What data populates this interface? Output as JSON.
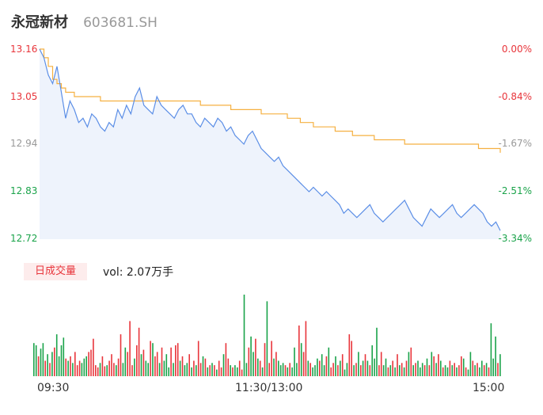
{
  "header": {
    "name": "永冠新材",
    "code": "603681.SH"
  },
  "colors": {
    "up": "#e8353b",
    "down": "#1aa34a",
    "neutral": "#999999",
    "price_line": "#5b8ee6",
    "avg_line": "#f5b041",
    "area": "#eef3fc"
  },
  "chart_data": [
    {
      "type": "line",
      "title": "",
      "x_ticks": [
        "09:30",
        "11:30/13:00",
        "15:00"
      ],
      "y_ticks_left": [
        "13.16",
        "13.05",
        "12.94",
        "12.83",
        "12.72"
      ],
      "y_ticks_right": [
        "0.00%",
        "-0.84%",
        "-1.67%",
        "-2.51%",
        "-3.34%"
      ],
      "ylim": [
        12.72,
        13.16
      ],
      "series": [
        {
          "key": "price",
          "values": [
            13.16,
            13.14,
            13.1,
            13.08,
            13.12,
            13.06,
            13.0,
            13.04,
            13.02,
            12.99,
            13.0,
            12.98,
            13.01,
            13.0,
            12.98,
            12.97,
            12.99,
            12.98,
            13.02,
            13.0,
            13.03,
            13.01,
            13.05,
            13.07,
            13.03,
            13.02,
            13.01,
            13.05,
            13.03,
            13.02,
            13.01,
            13.0,
            13.02,
            13.03,
            13.01,
            13.01,
            12.99,
            12.98,
            13.0,
            12.99,
            12.98,
            13.0,
            12.99,
            12.97,
            12.98,
            12.96,
            12.95,
            12.94,
            12.96,
            12.97,
            12.95,
            12.93,
            12.92,
            12.91,
            12.9,
            12.91,
            12.89,
            12.88,
            12.87,
            12.86,
            12.85,
            12.84,
            12.83,
            12.84,
            12.83,
            12.82,
            12.83,
            12.82,
            12.81,
            12.8,
            12.78,
            12.79,
            12.78,
            12.77,
            12.78,
            12.79,
            12.8,
            12.78,
            12.77,
            12.76,
            12.77,
            12.78,
            12.79,
            12.8,
            12.81,
            12.79,
            12.77,
            12.76,
            12.75,
            12.77,
            12.79,
            12.78,
            12.77,
            12.78,
            12.79,
            12.8,
            12.78,
            12.77,
            12.78,
            12.79,
            12.8,
            12.79,
            12.78,
            12.76,
            12.75,
            12.76,
            12.74
          ]
        },
        {
          "key": "average",
          "values": [
            13.16,
            13.14,
            13.12,
            13.09,
            13.08,
            13.07,
            13.06,
            13.06,
            13.05,
            13.05,
            13.05,
            13.05,
            13.05,
            13.05,
            13.04,
            13.04,
            13.04,
            13.04,
            13.04,
            13.04,
            13.04,
            13.04,
            13.04,
            13.04,
            13.04,
            13.04,
            13.04,
            13.04,
            13.04,
            13.04,
            13.04,
            13.04,
            13.04,
            13.04,
            13.04,
            13.04,
            13.04,
            13.03,
            13.03,
            13.03,
            13.03,
            13.03,
            13.03,
            13.03,
            13.02,
            13.02,
            13.02,
            13.02,
            13.02,
            13.02,
            13.02,
            13.01,
            13.01,
            13.01,
            13.01,
            13.01,
            13.01,
            13.0,
            13.0,
            13.0,
            12.99,
            12.99,
            12.99,
            12.98,
            12.98,
            12.98,
            12.98,
            12.98,
            12.97,
            12.97,
            12.97,
            12.97,
            12.96,
            12.96,
            12.96,
            12.96,
            12.96,
            12.95,
            12.95,
            12.95,
            12.95,
            12.95,
            12.95,
            12.95,
            12.94,
            12.94,
            12.94,
            12.94,
            12.94,
            12.94,
            12.94,
            12.94,
            12.94,
            12.94,
            12.94,
            12.94,
            12.94,
            12.94,
            12.94,
            12.94,
            12.94,
            12.93,
            12.93,
            12.93,
            12.93,
            12.93,
            12.92
          ]
        }
      ]
    },
    {
      "type": "bar",
      "title": "日成交量",
      "volume_total": "vol: 2.07万手",
      "values": [
        30,
        28,
        18,
        25,
        30,
        14,
        20,
        12,
        22,
        26,
        38,
        18,
        28,
        35,
        16,
        14,
        18,
        12,
        22,
        10,
        14,
        12,
        16,
        18,
        22,
        24,
        34,
        10,
        8,
        12,
        18,
        9,
        10,
        14,
        20,
        12,
        10,
        16,
        38,
        12,
        26,
        22,
        50,
        10,
        16,
        28,
        44,
        20,
        24,
        14,
        12,
        32,
        30,
        18,
        22,
        12,
        26,
        14,
        20,
        8,
        26,
        12,
        28,
        30,
        14,
        18,
        10,
        12,
        20,
        8,
        14,
        10,
        32,
        12,
        18,
        16,
        8,
        10,
        12,
        10,
        6,
        14,
        8,
        20,
        30,
        16,
        10,
        8,
        10,
        8,
        14,
        6,
        74,
        12,
        26,
        36,
        22,
        34,
        16,
        14,
        8,
        30,
        68,
        12,
        32,
        16,
        22,
        14,
        10,
        12,
        10,
        8,
        12,
        8,
        26,
        12,
        46,
        30,
        22,
        50,
        14,
        12,
        8,
        10,
        16,
        14,
        20,
        10,
        18,
        26,
        8,
        12,
        18,
        10,
        14,
        20,
        6,
        12,
        38,
        32,
        10,
        12,
        22,
        10,
        14,
        20,
        14,
        10,
        28,
        16,
        44,
        10,
        22,
        10,
        16,
        8,
        10,
        14,
        8,
        20,
        10,
        12,
        8,
        14,
        22,
        26,
        10,
        12,
        14,
        8,
        12,
        10,
        16,
        10,
        22,
        18,
        12,
        20,
        14,
        8,
        10,
        8,
        14,
        10,
        12,
        8,
        10,
        18,
        16,
        8,
        6,
        22,
        14,
        10,
        12,
        8,
        14,
        10,
        12,
        8,
        48,
        16,
        36,
        12,
        20
      ],
      "colors": [
        "d",
        "d",
        "u",
        "d",
        "d",
        "u",
        "d",
        "u",
        "d",
        "u",
        "d",
        "d",
        "d",
        "d",
        "u",
        "d",
        "u",
        "d",
        "u",
        "u",
        "u",
        "d",
        "d",
        "d",
        "u",
        "u",
        "u",
        "u",
        "u",
        "d",
        "u",
        "u",
        "d",
        "u",
        "u",
        "u",
        "d",
        "u",
        "u",
        "d",
        "d",
        "u",
        "u",
        "u",
        "d",
        "u",
        "u",
        "d",
        "u",
        "d",
        "d",
        "u",
        "d",
        "u",
        "u",
        "d",
        "u",
        "d",
        "d",
        "d",
        "u",
        "d",
        "u",
        "u",
        "d",
        "u",
        "d",
        "d",
        "u",
        "d",
        "u",
        "d",
        "u",
        "u",
        "d",
        "u",
        "d",
        "u",
        "d",
        "u",
        "d",
        "u",
        "u",
        "d",
        "u",
        "u",
        "d",
        "u",
        "d",
        "d",
        "u",
        "u",
        "d",
        "d",
        "u",
        "d",
        "d",
        "u",
        "d",
        "u",
        "d",
        "u",
        "d",
        "u",
        "u",
        "d",
        "u",
        "d",
        "d",
        "d",
        "u",
        "d",
        "u",
        "d",
        "d",
        "d",
        "u",
        "d",
        "u",
        "u",
        "d",
        "u",
        "d",
        "d",
        "d",
        "u",
        "d",
        "d",
        "u",
        "d",
        "u",
        "u",
        "d",
        "u",
        "d",
        "u",
        "d",
        "d",
        "u",
        "u",
        "d",
        "u",
        "d",
        "u",
        "d",
        "u",
        "d",
        "u",
        "d",
        "d",
        "d",
        "u",
        "u",
        "d",
        "d",
        "u",
        "d",
        "u",
        "d",
        "u",
        "d",
        "u",
        "d",
        "u",
        "d",
        "u",
        "d",
        "u",
        "d",
        "d",
        "d",
        "u",
        "d",
        "u",
        "d",
        "u",
        "d",
        "u",
        "d",
        "u",
        "d",
        "d",
        "u",
        "d",
        "u",
        "d",
        "u",
        "u",
        "d",
        "u",
        "d",
        "d",
        "u",
        "d",
        "u",
        "d",
        "d",
        "u",
        "d",
        "u",
        "d",
        "d",
        "d",
        "u",
        "d"
      ]
    }
  ]
}
